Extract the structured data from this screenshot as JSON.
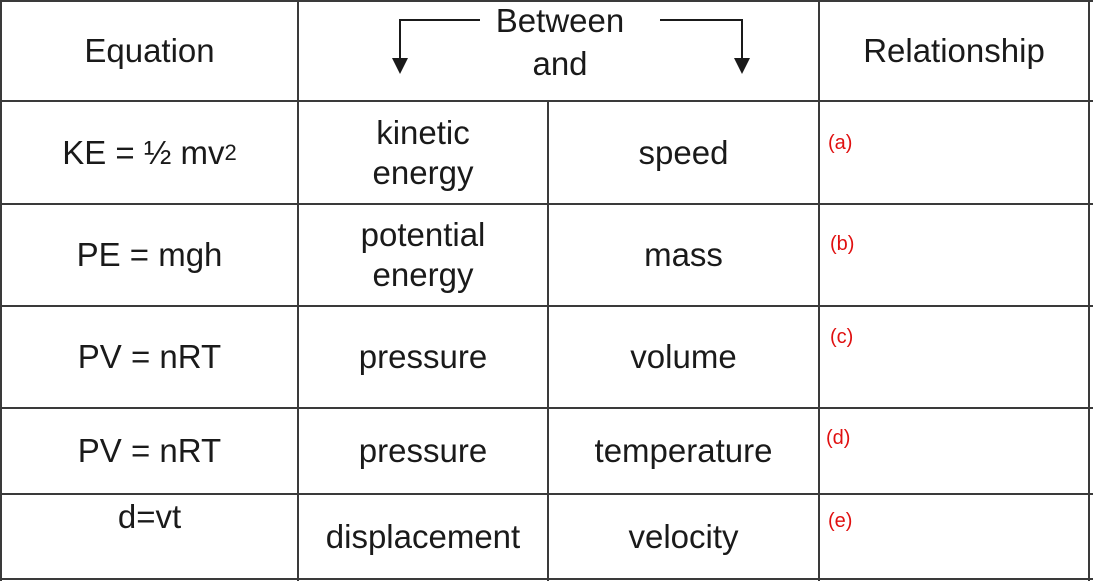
{
  "header": {
    "equation": "Equation",
    "between": "Between",
    "and": "and",
    "relationship": "Relationship"
  },
  "rows": [
    {
      "eq_base": "KE = ½ mv",
      "eq_sup": "2",
      "a1": "kinetic",
      "a2": "energy",
      "b": "speed",
      "tag": "(a)"
    },
    {
      "eq_base": "PE = mgh",
      "eq_sup": "",
      "a1": "potential",
      "a2": "energy",
      "b": "mass",
      "tag": "(b)"
    },
    {
      "eq_base": "PV = nRT",
      "eq_sup": "",
      "a1": "pressure",
      "a2": "",
      "b": "volume",
      "tag": "(c)"
    },
    {
      "eq_base": "PV = nRT",
      "eq_sup": "",
      "a1": "pressure",
      "a2": "",
      "b": "temperature",
      "tag": "(d)"
    },
    {
      "eq_base": "d=vt",
      "eq_sup": "",
      "a1": "displacement",
      "a2": "",
      "b": "velocity",
      "tag": "(e)"
    }
  ],
  "colors": {
    "grid": "#3a3a3a",
    "tag": "#e01010",
    "text": "#1a1a1a"
  }
}
